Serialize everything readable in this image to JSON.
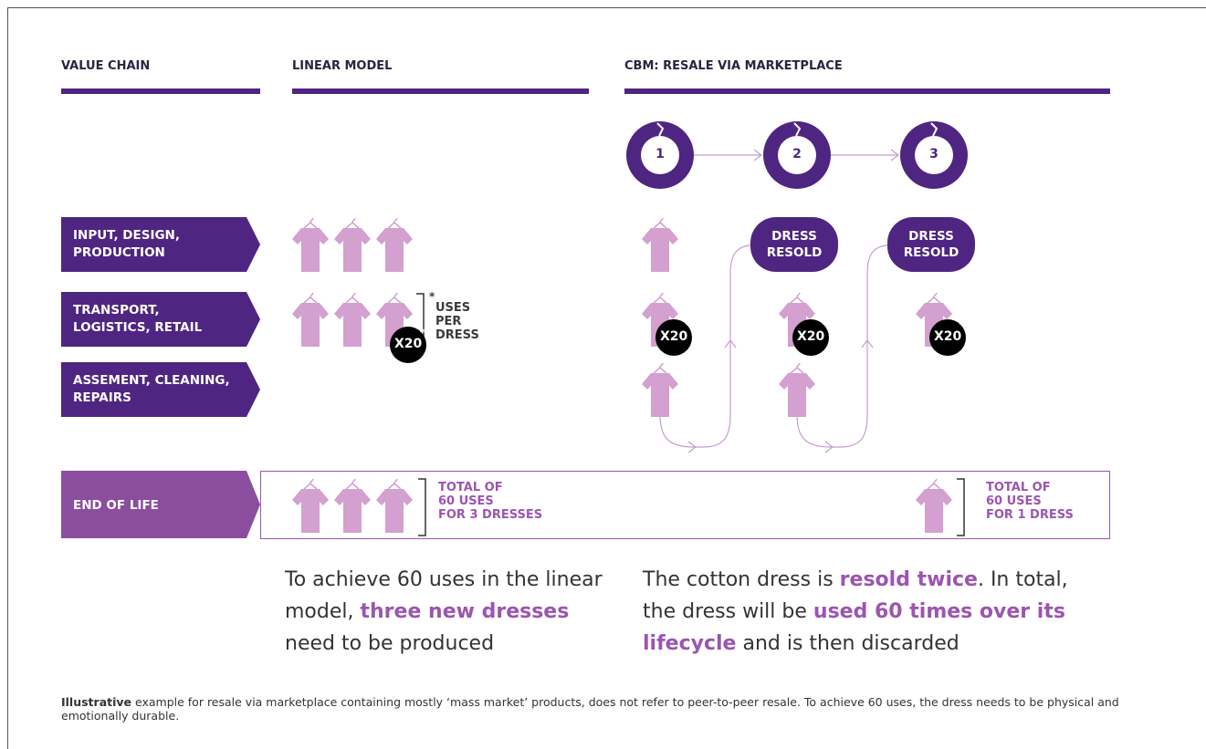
{
  "headers": [
    "VALUE CHAIN",
    "LINEAR MODEL",
    "CBM: RESALE VIA MARKETPLACE"
  ],
  "steps": [
    "1",
    "2",
    "3"
  ],
  "rows": [
    {
      "lines": [
        "INPUT, DESIGN,",
        "PRODUCTION"
      ]
    },
    {
      "lines": [
        "TRANSPORT,",
        "LOGISTICS, RETAIL"
      ]
    },
    {
      "lines": [
        "ASSEMENT, CLEANING,",
        "REPAIRS"
      ]
    },
    {
      "lines": [
        "END OF LIFE"
      ]
    }
  ],
  "badge": {
    "label": "X20",
    "mark": "*"
  },
  "uses_note": {
    "mark": "*",
    "lines": [
      "USES",
      "PER",
      "DRESS"
    ]
  },
  "resold": {
    "lines": [
      "DRESS",
      "RESOLD"
    ]
  },
  "totals": {
    "linear": [
      "TOTAL OF",
      "60 USES",
      "FOR 3 DRESSES"
    ],
    "cbm": [
      "TOTAL OF",
      "60 USES",
      "FOR 1 DRESS"
    ]
  },
  "paragraphs": {
    "linear": [
      {
        "text": "To achieve 60 uses in the linear model, "
      },
      {
        "text": "three new dresses",
        "bold": true
      },
      {
        "text": " need to be produced"
      }
    ],
    "cbm": [
      {
        "text": "The cotton dress is "
      },
      {
        "text": "resold twice",
        "bold": true
      },
      {
        "text": ". In total, the dress will be "
      },
      {
        "text": "used 60 times over its lifecycle",
        "bold": true
      },
      {
        "text": " and is then discarded"
      }
    ]
  },
  "footnote": [
    {
      "text": "Illustrative",
      "bold": true
    },
    {
      "text": " example for resale via marketplace containing mostly ‘mass market’ products, does not refer to peer-to-peer resale. To achieve 60 uses, the dress needs to be physical and emotionally durable."
    }
  ]
}
